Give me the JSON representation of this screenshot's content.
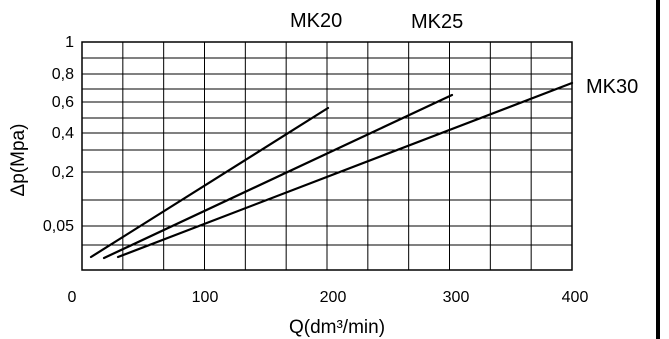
{
  "chart_data": {
    "type": "line",
    "xlabel": "Q(dm³/min)",
    "ylabel": "Δp(Mpa)",
    "xlim": [
      0,
      400
    ],
    "x_ticks": [
      {
        "value": 0,
        "label": "0"
      },
      {
        "value": 100,
        "label": "100"
      },
      {
        "value": 200,
        "label": "200"
      },
      {
        "value": 300,
        "label": "300"
      },
      {
        "value": 400,
        "label": "400"
      }
    ],
    "y_ticks": [
      {
        "value": 1,
        "label": "1"
      },
      {
        "value": 0.8,
        "label": "0,8"
      },
      {
        "value": 0.6,
        "label": "0,6"
      },
      {
        "value": 0.4,
        "label": "0,4"
      },
      {
        "value": 0.2,
        "label": "0,2"
      },
      {
        "value": 0.05,
        "label": "0,05"
      }
    ],
    "grid": true,
    "series": [
      {
        "name": "MK20",
        "x": [
          15,
          205
        ],
        "y": [
          0.02,
          0.55
        ]
      },
      {
        "name": "MK25",
        "x": [
          25,
          305
        ],
        "y": [
          0.02,
          0.63
        ]
      },
      {
        "name": "MK30",
        "x": [
          37,
          400
        ],
        "y": [
          0.02,
          0.72
        ]
      }
    ]
  }
}
